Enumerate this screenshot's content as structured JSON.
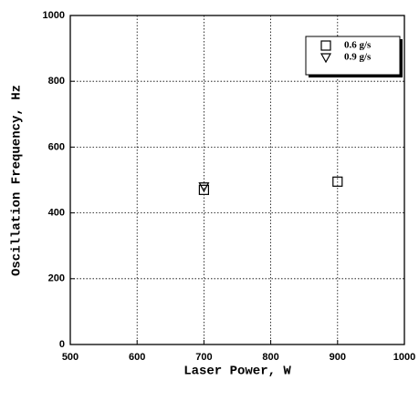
{
  "chart_data": {
    "type": "scatter",
    "xlabel": "Laser Power, W",
    "ylabel": "Oscillation Frequency, Hz",
    "series": [
      {
        "name": "0.6 g/s",
        "color": "#000000",
        "marker": "square",
        "x": [
          700,
          900
        ],
        "values": [
          470,
          495
        ]
      },
      {
        "name": "0.9 g/s",
        "color": "#000000",
        "marker": "triangle-down",
        "x": [
          700
        ],
        "values": [
          480
        ]
      }
    ],
    "xlim": [
      500,
      1000
    ],
    "xticks": [
      500,
      600,
      700,
      800,
      900,
      1000
    ],
    "ylim": [
      0,
      1000
    ],
    "yticks": [
      0,
      200,
      400,
      600,
      800,
      1000
    ],
    "grid": true,
    "legend": "upper right"
  }
}
